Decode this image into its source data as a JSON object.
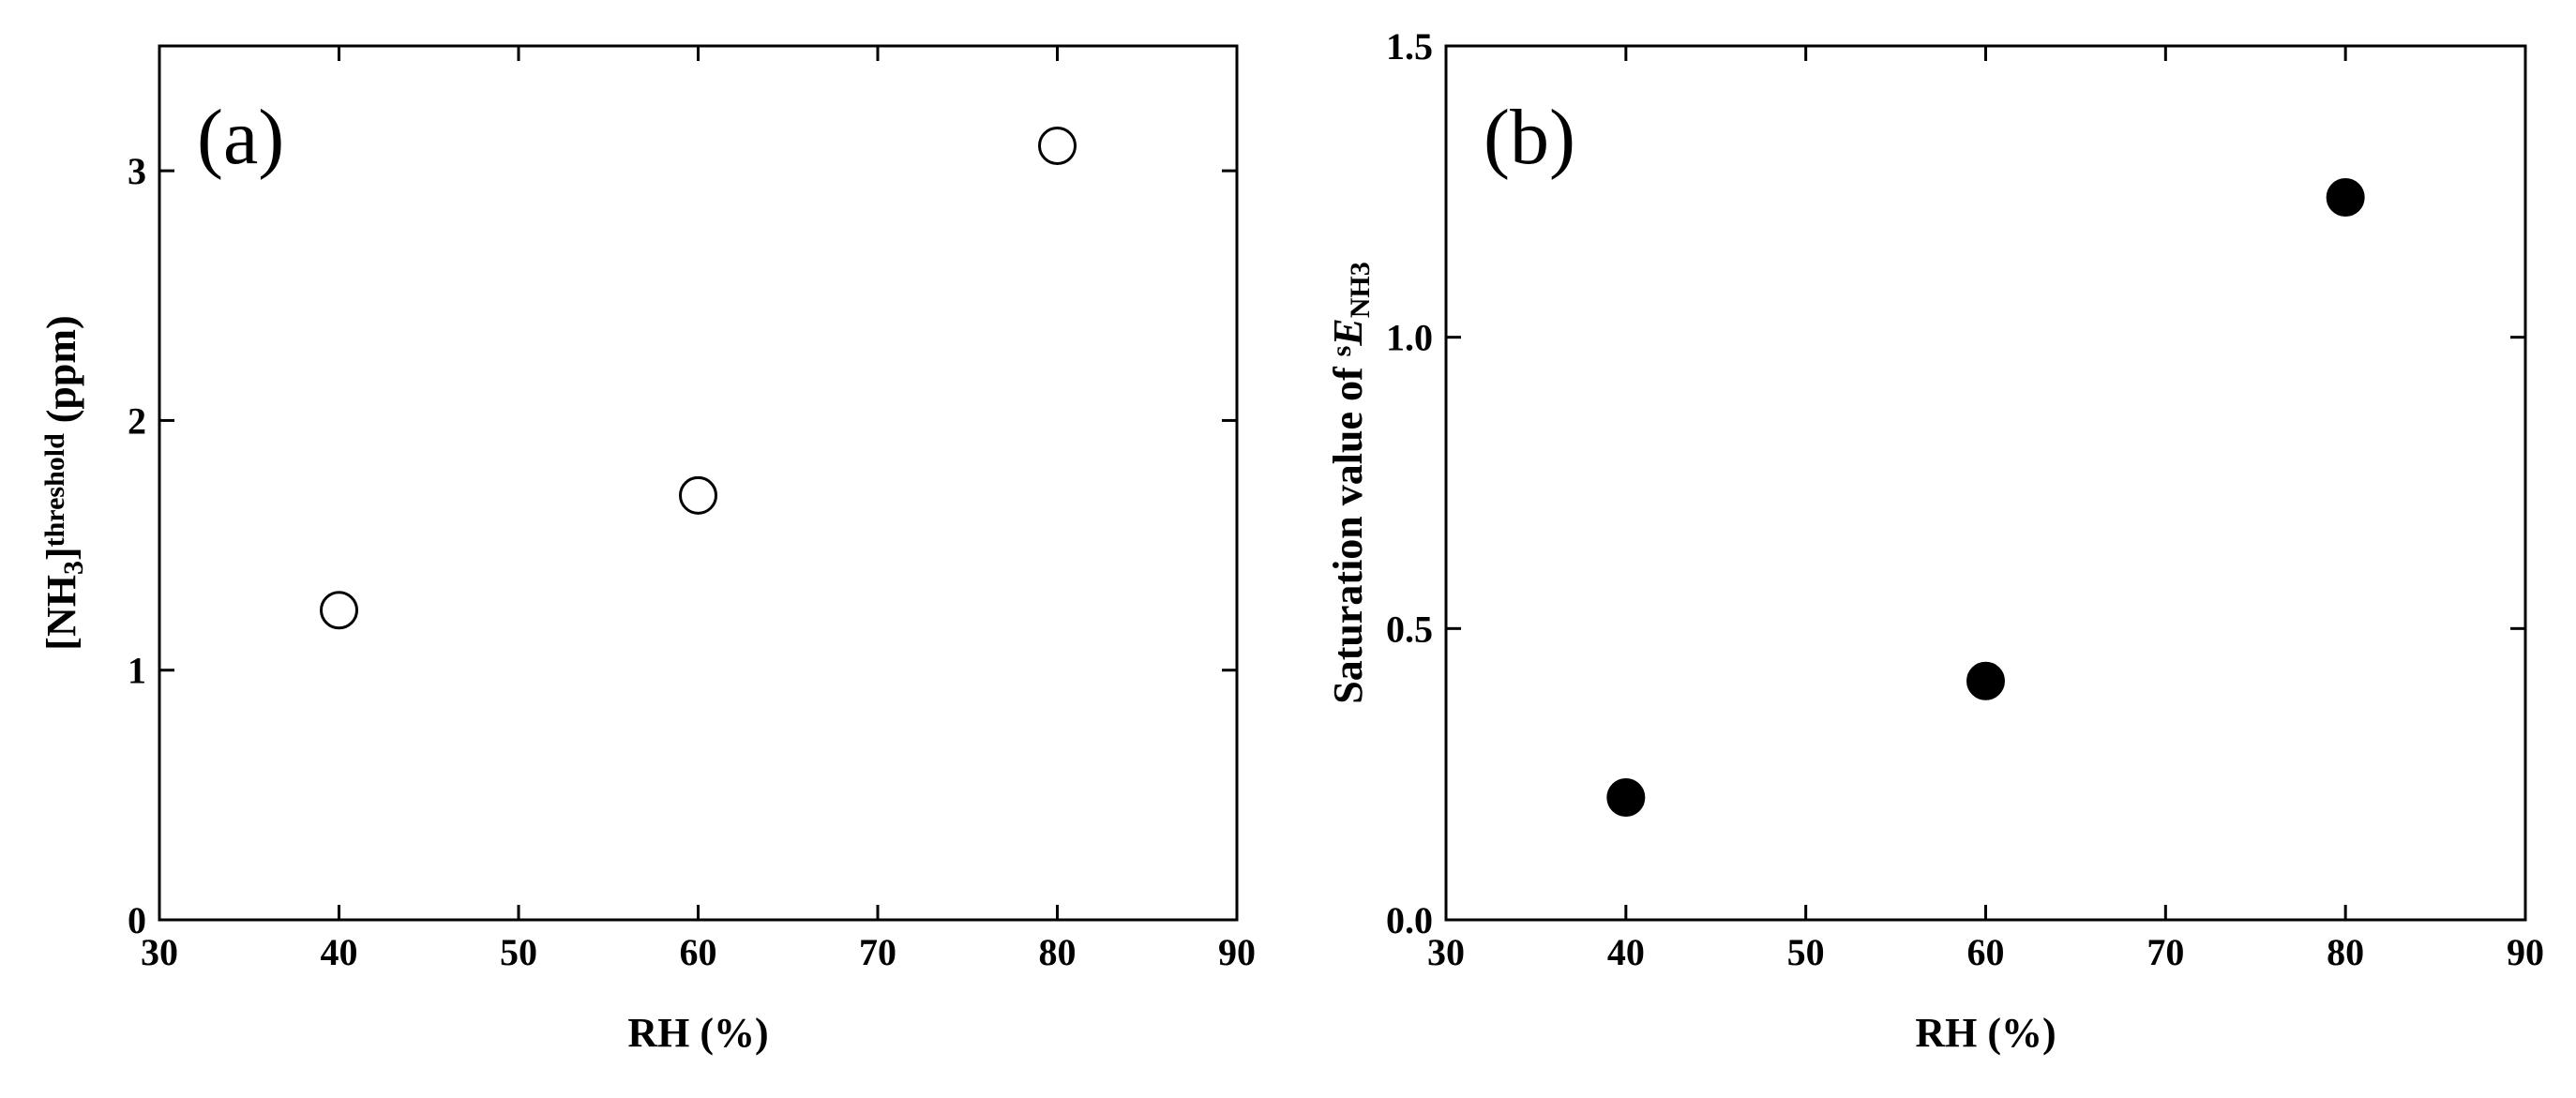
{
  "chart_data": [
    {
      "type": "scatter",
      "annotation": "(a)",
      "xlabel": "RH (%)",
      "ylabel": {
        "parts": [
          "[NH",
          "3",
          "]",
          "threshold",
          " (ppm)"
        ],
        "shift": [
          "base",
          "sub",
          "base",
          "super",
          "base"
        ]
      },
      "x": [
        40,
        60,
        80
      ],
      "values": [
        1.24,
        1.7,
        3.1
      ],
      "color": "#000000",
      "marker_filled": false,
      "xlim": [
        30,
        90
      ],
      "xticks": [
        30,
        40,
        50,
        60,
        70,
        80,
        90
      ],
      "ylim": [
        0,
        3.5
      ],
      "yticks": [
        0,
        1,
        2,
        3
      ]
    },
    {
      "type": "scatter",
      "annotation": "(b)",
      "xlabel": "RH (%)",
      "ylabel": {
        "parts": [
          "Saturation value of ",
          "s",
          "E",
          "NH3"
        ],
        "shift": [
          "base",
          "super",
          "italic",
          "sub"
        ]
      },
      "x": [
        40,
        60,
        80
      ],
      "values": [
        0.21,
        0.41,
        1.24
      ],
      "color": "#000000",
      "marker_filled": true,
      "xlim": [
        30,
        90
      ],
      "xticks": [
        30,
        40,
        50,
        60,
        70,
        80,
        90
      ],
      "ylim": [
        0,
        1.5
      ],
      "yticks": [
        {
          "value": 0,
          "label": "0.0"
        },
        0.5,
        {
          "value": 1,
          "label": "1.0"
        },
        1.5
      ]
    }
  ]
}
